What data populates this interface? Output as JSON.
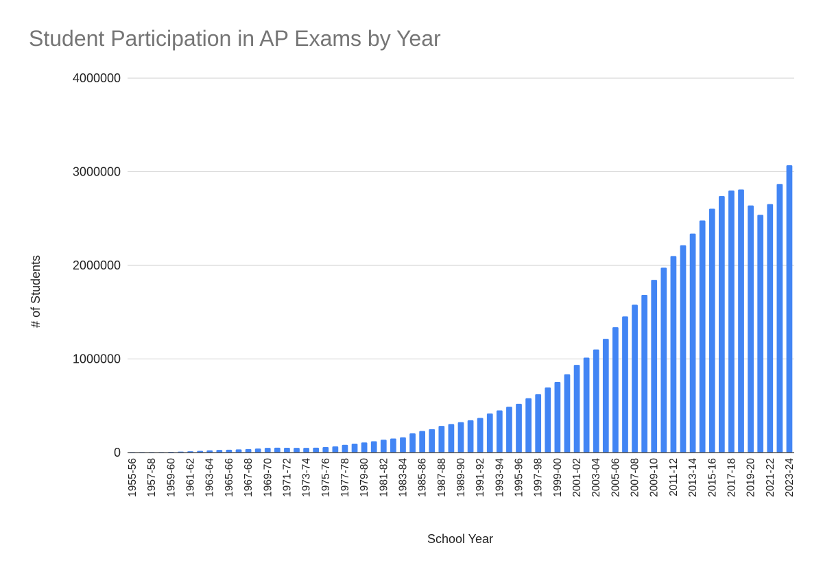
{
  "chart_data": {
    "type": "bar",
    "title": "Student Participation in AP Exams by Year",
    "xlabel": "School Year",
    "ylabel": "# of Students",
    "ylim": [
      0,
      4000000
    ],
    "yticks": [
      "0",
      "1000000",
      "2000000",
      "3000000",
      "4000000"
    ],
    "grid": true,
    "color": "#4285f4",
    "categories": [
      "1955-56",
      "1956-57",
      "1957-58",
      "1958-59",
      "1959-60",
      "1960-61",
      "1961-62",
      "1962-63",
      "1963-64",
      "1964-65",
      "1965-66",
      "1966-67",
      "1967-68",
      "1968-69",
      "1969-70",
      "1970-71",
      "1971-72",
      "1972-73",
      "1973-74",
      "1974-75",
      "1975-76",
      "1976-77",
      "1977-78",
      "1978-79",
      "1979-80",
      "1980-81",
      "1981-82",
      "1982-83",
      "1983-84",
      "1984-85",
      "1985-86",
      "1986-87",
      "1987-88",
      "1988-89",
      "1989-90",
      "1990-91",
      "1991-92",
      "1992-93",
      "1993-94",
      "1994-95",
      "1995-96",
      "1996-97",
      "1997-98",
      "1998-99",
      "1999-00",
      "2000-01",
      "2001-02",
      "2002-03",
      "2003-04",
      "2004-05",
      "2005-06",
      "2006-07",
      "2007-08",
      "2008-09",
      "2009-10",
      "2010-11",
      "2011-12",
      "2012-13",
      "2013-14",
      "2014-15",
      "2015-16",
      "2016-17",
      "2017-18",
      "2018-19",
      "2019-20",
      "2020-21",
      "2021-22",
      "2022-23",
      "2023-24"
    ],
    "xtick_labels": [
      "1955-56",
      "1957-58",
      "1959-60",
      "1961-62",
      "1963-64",
      "1965-66",
      "1967-68",
      "1969-70",
      "1971-72",
      "1973-74",
      "1975-76",
      "1977-78",
      "1979-80",
      "1981-82",
      "1983-84",
      "1985-86",
      "1987-88",
      "1989-90",
      "1991-92",
      "1993-94",
      "1995-96",
      "1997-98",
      "1999-00",
      "2001-02",
      "2003-04",
      "2005-06",
      "2007-08",
      "2009-10",
      "2011-12",
      "2013-14",
      "2015-16",
      "2017-18",
      "2019-20",
      "2021-22",
      "2023-24"
    ],
    "values": [
      1200,
      2000,
      3700,
      5500,
      7300,
      10500,
      13300,
      18000,
      24000,
      28000,
      30000,
      34000,
      38000,
      43000,
      50000,
      52000,
      51000,
      50000,
      50000,
      52000,
      59000,
      66000,
      82000,
      95000,
      108000,
      121000,
      137000,
      150000,
      163000,
      205000,
      231000,
      250000,
      285000,
      305000,
      325000,
      345000,
      370000,
      418000,
      451000,
      490000,
      521000,
      581000,
      624000,
      695000,
      755000,
      836000,
      937000,
      1015000,
      1102000,
      1215000,
      1340000,
      1455000,
      1580000,
      1685000,
      1845000,
      1975000,
      2100000,
      2215000,
      2340000,
      2480000,
      2605000,
      2740000,
      2800000,
      2810000,
      2640000,
      2540000,
      2655000,
      2870000,
      3070000
    ]
  }
}
